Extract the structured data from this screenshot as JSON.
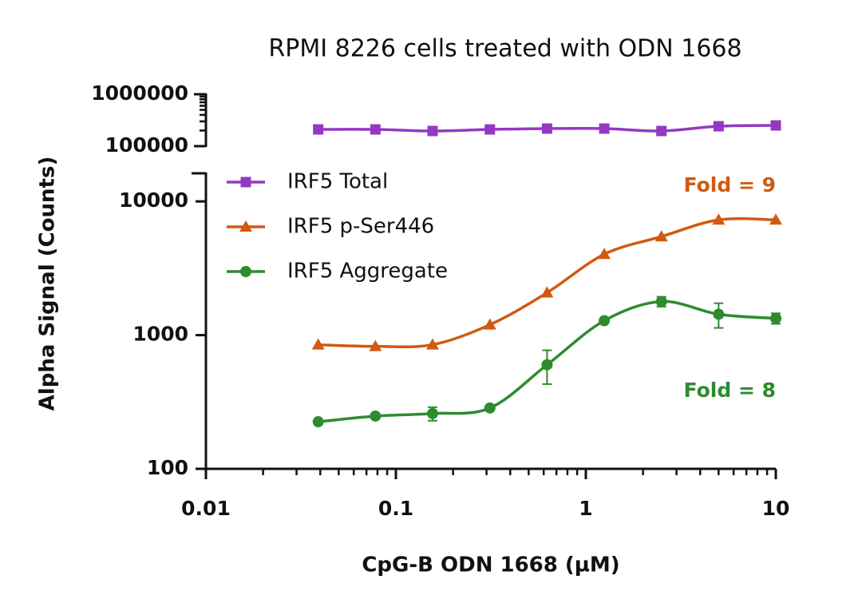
{
  "chart_data": {
    "type": "line",
    "title": "RPMI 8226 cells treated with ODN 1668",
    "x_label": "CpG-B ODN 1668 (µM)",
    "y_label": "Alpha Signal (Counts)",
    "x": [
      0.039,
      0.078,
      0.156,
      0.3125,
      0.625,
      1.25,
      2.5,
      5,
      10
    ],
    "xlim": [
      0.01,
      10
    ],
    "xticks": [
      0.01,
      0.1,
      1,
      10
    ],
    "xminorticks": [
      0.02,
      0.03,
      0.04,
      0.05,
      0.06,
      0.07,
      0.08,
      0.09,
      0.2,
      0.3,
      0.4,
      0.5,
      0.6,
      0.7,
      0.8,
      0.9,
      2,
      3,
      4,
      5,
      6,
      7,
      8,
      9
    ],
    "xscale": "log",
    "yscale": "log",
    "ylim": [
      100,
      16000
    ],
    "yticks": [
      100,
      1000,
      10000
    ],
    "ylim_upper": [
      100000,
      1000000
    ],
    "yticks_upper": [
      100000,
      1000000
    ],
    "yminorticks_upper": [
      200000,
      300000,
      400000,
      500000,
      600000,
      700000,
      800000,
      900000
    ],
    "legend": "upper left",
    "series": [
      {
        "name": "IRF5 Total",
        "color": "#9438c4",
        "marker": "square",
        "axis": "upper",
        "values": [
          210000,
          210000,
          196000,
          210000,
          218000,
          218000,
          196000,
          242000,
          251000
        ]
      },
      {
        "name": "IRF5 p-Ser446",
        "color": "#d05a10",
        "marker": "triangle",
        "values": [
          848,
          824,
          848,
          1196,
          2076,
          4027,
          5455,
          7280,
          7280
        ]
      },
      {
        "name": "IRF5 Aggregate",
        "color": "#2e8b2e",
        "marker": "circle",
        "values": [
          225,
          248,
          259,
          285,
          600,
          1282,
          1784,
          1432,
          1335
        ],
        "errors": [
          null,
          null,
          30,
          null,
          170,
          null,
          150,
          300,
          120
        ]
      }
    ],
    "annotations": [
      {
        "text": "Fold = 9",
        "color": "#d05a10"
      },
      {
        "text": "Fold = 8",
        "color": "#2e8b2e"
      }
    ]
  }
}
